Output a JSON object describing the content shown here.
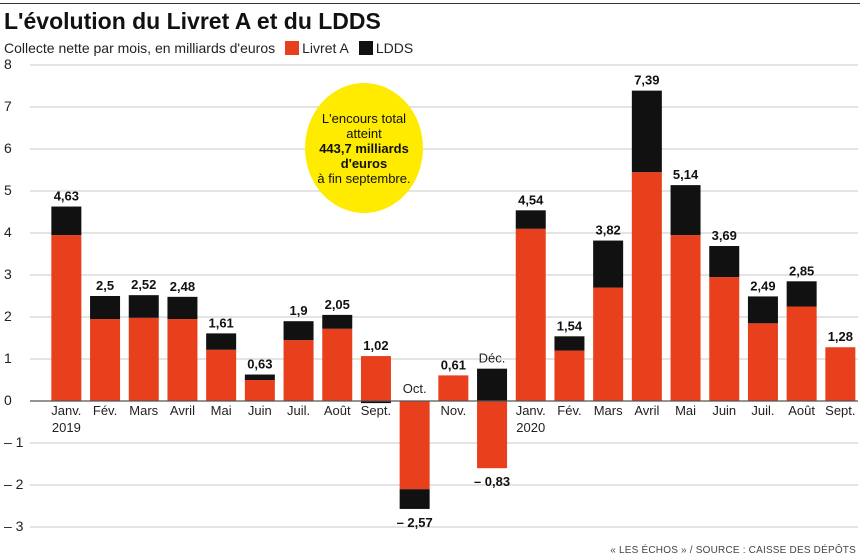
{
  "title": "L'évolution du Livret A et du LDDS",
  "subtitle": "Collecte nette par mois, en milliards d'euros",
  "legend": [
    {
      "label": "Livret A",
      "color": "#e8401c"
    },
    {
      "label": "LDDS",
      "color": "#111111"
    }
  ],
  "callout": {
    "line1": "L'encours total",
    "line2": "atteint",
    "bold1": "443,7 milliards",
    "bold2": "d'euros",
    "line3": "à fin septembre."
  },
  "footer": "« LES ÉCHOS » / SOURCE : CAISSE DES DÉPÔTS",
  "chart_data": {
    "type": "bar",
    "stacked": true,
    "ylim": [
      -3,
      8
    ],
    "yticks": [
      8,
      7,
      6,
      5,
      4,
      3,
      2,
      1,
      0,
      -1,
      -2,
      -3
    ],
    "ytick_labels": [
      "8",
      "7",
      "6",
      "5",
      "4",
      "3",
      "2",
      "1",
      "0",
      "– 1",
      "– 2",
      "– 3"
    ],
    "grid": true,
    "colors": {
      "livret_a": "#e8401c",
      "ldds": "#111111"
    },
    "categories": [
      {
        "label": "Janv.",
        "sub": "2019"
      },
      {
        "label": "Fév.",
        "sub": ""
      },
      {
        "label": "Mars",
        "sub": ""
      },
      {
        "label": "Avril",
        "sub": ""
      },
      {
        "label": "Mai",
        "sub": ""
      },
      {
        "label": "Juin",
        "sub": ""
      },
      {
        "label": "Juil.",
        "sub": ""
      },
      {
        "label": "Août",
        "sub": ""
      },
      {
        "label": "Sept.",
        "sub": ""
      },
      {
        "label": "Oct.",
        "sub": ""
      },
      {
        "label": "Nov.",
        "sub": ""
      },
      {
        "label": "Déc.",
        "sub": ""
      },
      {
        "label": "Janv.",
        "sub": "2020"
      },
      {
        "label": "Fév.",
        "sub": ""
      },
      {
        "label": "Mars",
        "sub": ""
      },
      {
        "label": "Avril",
        "sub": ""
      },
      {
        "label": "Mai",
        "sub": ""
      },
      {
        "label": "Juin",
        "sub": ""
      },
      {
        "label": "Juil.",
        "sub": ""
      },
      {
        "label": "Août",
        "sub": ""
      },
      {
        "label": "Sept.",
        "sub": ""
      }
    ],
    "series": [
      {
        "name": "Livret A",
        "values": [
          3.95,
          1.95,
          1.98,
          1.95,
          1.22,
          0.5,
          1.45,
          1.72,
          1.07,
          -2.1,
          0.61,
          -1.6,
          4.1,
          1.2,
          2.7,
          5.45,
          3.95,
          2.95,
          1.85,
          2.25,
          1.28
        ]
      },
      {
        "name": "LDDS",
        "values": [
          0.68,
          0.55,
          0.54,
          0.53,
          0.39,
          0.13,
          0.45,
          0.33,
          -0.05,
          -0.47,
          0.0,
          0.77,
          0.44,
          0.34,
          1.12,
          1.94,
          1.19,
          0.74,
          0.64,
          0.6,
          0.0
        ]
      }
    ],
    "totals": [
      {
        "value": "4,63",
        "bold": true
      },
      {
        "value": "2,5",
        "bold": true
      },
      {
        "value": "2,52",
        "bold": true
      },
      {
        "value": "2,48",
        "bold": true
      },
      {
        "value": "1,61",
        "bold": true
      },
      {
        "value": "0,63",
        "bold": true
      },
      {
        "value": "1,9",
        "bold": true
      },
      {
        "value": "2,05",
        "bold": true
      },
      {
        "value": "1,02",
        "bold": true
      },
      {
        "value": "– 2,57",
        "bold": true
      },
      {
        "value": "0,61",
        "bold": true
      },
      {
        "value": "– 0,83",
        "bold": true
      },
      {
        "value": "4,54",
        "bold": true
      },
      {
        "value": "1,54",
        "bold": true
      },
      {
        "value": "3,82",
        "bold": true
      },
      {
        "value": "7,39",
        "bold": true
      },
      {
        "value": "5,14",
        "bold": true
      },
      {
        "value": "3,69",
        "bold": true
      },
      {
        "value": "2,49",
        "bold": true
      },
      {
        "value": "2,85",
        "bold": true
      },
      {
        "value": "1,28",
        "bold": true
      }
    ]
  }
}
